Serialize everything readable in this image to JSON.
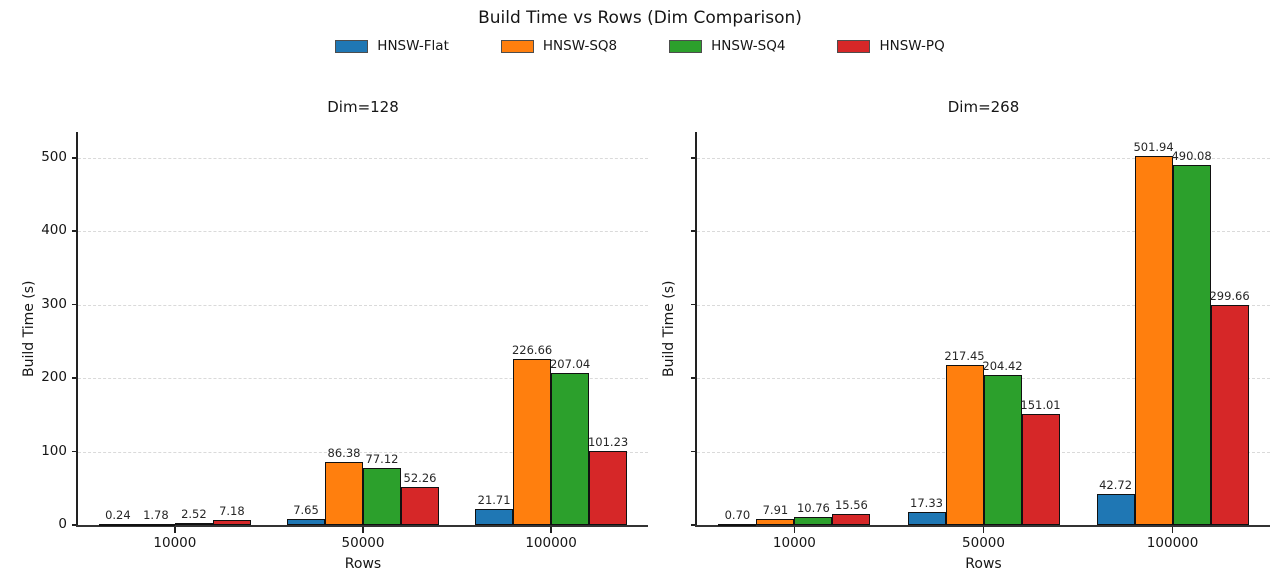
{
  "title": "Build Time vs Rows (Dim Comparison)",
  "legend": {
    "position": "top-center",
    "items": [
      {
        "label": "HNSW-Flat",
        "color": "#1f77b4"
      },
      {
        "label": "HNSW-SQ8",
        "color": "#ff7f0e"
      },
      {
        "label": "HNSW-SQ4",
        "color": "#2ca02c"
      },
      {
        "label": "HNSW-PQ",
        "color": "#d62728"
      }
    ]
  },
  "chart_data": [
    {
      "type": "bar",
      "title": "Dim=128",
      "xlabel": "Rows",
      "ylabel": "Build Time (s)",
      "categories": [
        "10000",
        "50000",
        "100000"
      ],
      "series": [
        {
          "name": "HNSW-Flat",
          "color": "#1f77b4",
          "values": [
            0.24,
            7.65,
            21.71
          ]
        },
        {
          "name": "HNSW-SQ8",
          "color": "#ff7f0e",
          "values": [
            1.78,
            86.38,
            226.66
          ]
        },
        {
          "name": "HNSW-SQ4",
          "color": "#2ca02c",
          "values": [
            2.52,
            77.12,
            207.04
          ]
        },
        {
          "name": "HNSW-PQ",
          "color": "#d62728",
          "values": [
            7.18,
            52.26,
            101.23
          ]
        }
      ],
      "value_labels": [
        [
          "0.24",
          "7.65",
          "21.71"
        ],
        [
          "1.78",
          "86.38",
          "226.66"
        ],
        [
          "2.52",
          "77.12",
          "207.04"
        ],
        [
          "7.18",
          "52.26",
          "101.23"
        ]
      ],
      "yticks": [
        0,
        100,
        200,
        300,
        400,
        500
      ],
      "ylim": [
        0,
        535
      ],
      "show_ytick_labels": true,
      "grid": "horizontal-dashed"
    },
    {
      "type": "bar",
      "title": "Dim=268",
      "xlabel": "Rows",
      "ylabel": "Build Time (s)",
      "categories": [
        "10000",
        "50000",
        "100000"
      ],
      "series": [
        {
          "name": "HNSW-Flat",
          "color": "#1f77b4",
          "values": [
            0.7,
            17.33,
            42.72
          ]
        },
        {
          "name": "HNSW-SQ8",
          "color": "#ff7f0e",
          "values": [
            7.91,
            217.45,
            501.94
          ]
        },
        {
          "name": "HNSW-SQ4",
          "color": "#2ca02c",
          "values": [
            10.76,
            204.42,
            490.08
          ]
        },
        {
          "name": "HNSW-PQ",
          "color": "#d62728",
          "values": [
            15.56,
            151.01,
            299.66
          ]
        }
      ],
      "value_labels": [
        [
          "0.70",
          "17.33",
          "42.72"
        ],
        [
          "7.91",
          "217.45",
          "501.94"
        ],
        [
          "10.76",
          "204.42",
          "490.08"
        ],
        [
          "15.56",
          "151.01",
          "299.66"
        ]
      ],
      "yticks": [
        0,
        100,
        200,
        300,
        400,
        500
      ],
      "ylim": [
        0,
        535
      ],
      "show_ytick_labels": false,
      "grid": "horizontal-dashed"
    }
  ]
}
